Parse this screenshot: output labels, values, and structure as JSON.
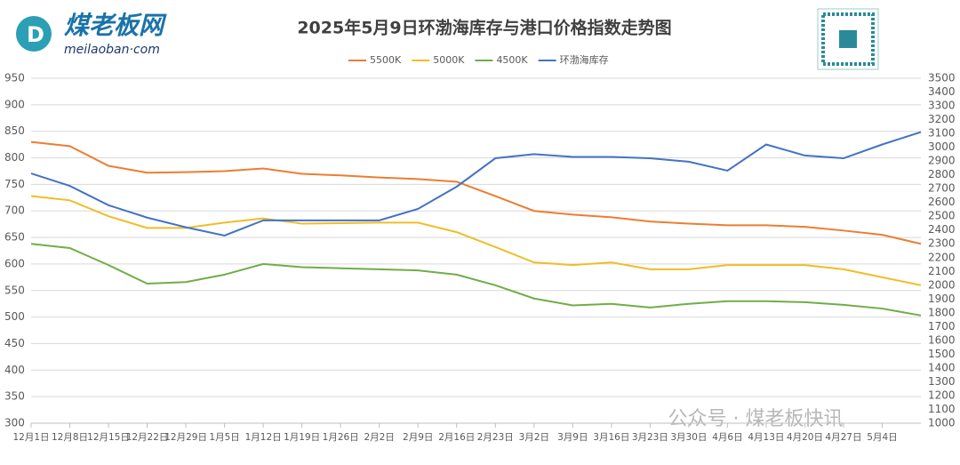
{
  "logo": {
    "name": "煤老板网",
    "site": "meilaoban·com"
  },
  "watermark": "公众号 · 煤老板快讯",
  "chart_data": {
    "type": "line",
    "title": "2025年5月9日环渤海库存与港口价格指数走势图",
    "categories": [
      "12月1日",
      "12月8日",
      "12月15日",
      "12月22日",
      "12月29日",
      "1月5日",
      "1月12日",
      "1月19日",
      "1月26日",
      "2月2日",
      "2月9日",
      "2月16日",
      "2月23日",
      "3月2日",
      "3月9日",
      "3月16日",
      "3月23日",
      "3月30日",
      "4月6日",
      "4月13日",
      "4月20日",
      "4月27日",
      "5月4日",
      null
    ],
    "series": [
      {
        "name": "5500K",
        "color": "#ed7d31",
        "values": [
          830,
          822,
          785,
          772,
          773,
          775,
          780,
          770,
          767,
          763,
          760,
          755,
          728,
          700,
          693,
          688,
          680,
          676,
          673,
          673,
          670,
          663,
          655,
          638
        ]
      },
      {
        "name": "5000K",
        "color": "#f0bd27",
        "values": [
          728,
          720,
          690,
          668,
          668,
          678,
          686,
          676,
          677,
          678,
          678,
          660,
          632,
          603,
          598,
          603,
          590,
          590,
          598,
          598,
          598,
          590,
          575,
          560
        ]
      },
      {
        "name": "4500K",
        "color": "#70ad47",
        "values": [
          638,
          630,
          598,
          563,
          566,
          580,
          600,
          594,
          592,
          590,
          588,
          580,
          560,
          535,
          522,
          525,
          518,
          525,
          530,
          530,
          528,
          523,
          516,
          503
        ]
      },
      {
        "name": "环渤海库存",
        "color": "#4472c4",
        "axis": "y2",
        "values": [
          2810,
          2720,
          2580,
          2490,
          2420,
          2360,
          2470,
          2470,
          2470,
          2470,
          2553,
          2714,
          2920,
          2950,
          2930,
          2930,
          2920,
          2895,
          2830,
          3020,
          2940,
          2920,
          3020,
          3110
        ]
      }
    ],
    "ylim": [
      300,
      950
    ],
    "yticks": [
      300,
      350,
      400,
      450,
      500,
      550,
      600,
      650,
      700,
      750,
      800,
      850,
      900,
      950
    ],
    "y2lim": [
      1000,
      3500
    ],
    "y2ticks": [
      1000,
      1100,
      1200,
      1300,
      1400,
      1500,
      1600,
      1700,
      1800,
      1900,
      2000,
      2100,
      2200,
      2300,
      2400,
      2500,
      2600,
      2700,
      2800,
      2900,
      3000,
      3100,
      3200,
      3300,
      3400,
      3500
    ],
    "grid": true,
    "legend": "top"
  }
}
